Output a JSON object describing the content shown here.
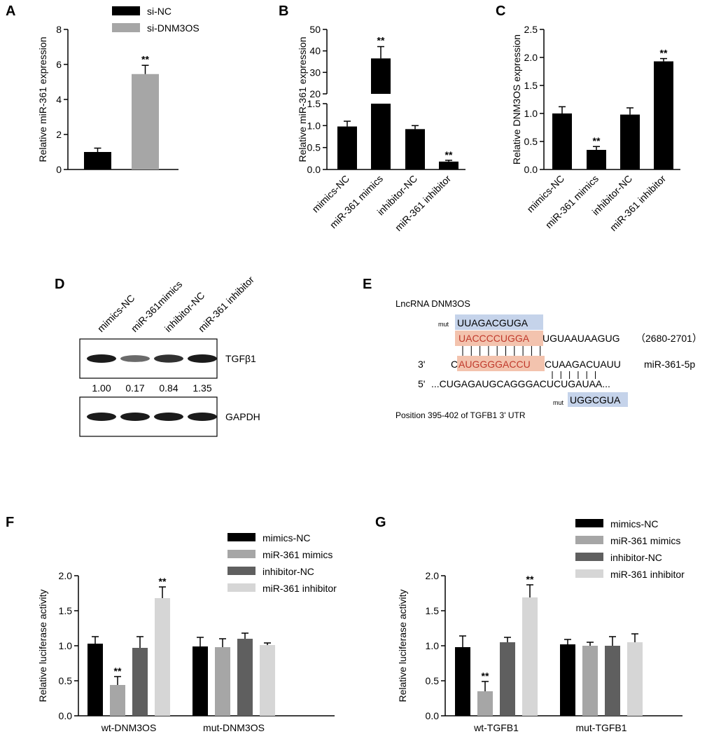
{
  "panel_labels": [
    "A",
    "B",
    "C",
    "D",
    "E",
    "F",
    "G"
  ],
  "chart_data": [
    {
      "id": "A",
      "type": "bar",
      "ylabel": "Relative miR-361 expression",
      "ylim": [
        0,
        8
      ],
      "yticks": [
        0,
        2,
        4,
        6,
        8
      ],
      "categories": [
        "si-NC",
        "si-DNM3OS"
      ],
      "values": [
        1.0,
        5.45
      ],
      "errors": [
        0.22,
        0.5
      ],
      "colors": [
        "#000000",
        "#a6a6a6"
      ],
      "significance": [
        "",
        "**"
      ],
      "legend": [
        "si-NC",
        "si-DNM3OS"
      ]
    },
    {
      "id": "B",
      "type": "bar",
      "ylabel": "Relative miR-361 expression",
      "axis_break": true,
      "lower_ylim": [
        0,
        1.5
      ],
      "lower_yticks": [
        "0.0",
        "0.5",
        "1.0",
        "1.5"
      ],
      "upper_ylim": [
        20,
        50
      ],
      "upper_yticks": [
        "20",
        "30",
        "40",
        "50"
      ],
      "categories": [
        "mimics-NC",
        "miR-361 mimics",
        "inhibitor-NC",
        "miR-361 inhibitor"
      ],
      "values": [
        0.98,
        36.5,
        0.92,
        0.18
      ],
      "errors": [
        0.12,
        5.5,
        0.08,
        0.03
      ],
      "colors": [
        "#000000",
        "#000000",
        "#000000",
        "#000000"
      ],
      "significance": [
        "",
        "**",
        "",
        "**"
      ]
    },
    {
      "id": "C",
      "type": "bar",
      "ylabel": "Relative DNM3OS expression",
      "ylim": [
        0,
        2.5
      ],
      "yticks": [
        "0.0",
        "0.5",
        "1.0",
        "1.5",
        "2.0",
        "2.5"
      ],
      "categories": [
        "mimics-NC",
        "miR-361 mimics",
        "inhibitor-NC",
        "miR-361 inhibitor"
      ],
      "values": [
        1.0,
        0.35,
        0.98,
        1.93
      ],
      "errors": [
        0.12,
        0.06,
        0.12,
        0.05
      ],
      "colors": [
        "#000000",
        "#000000",
        "#000000",
        "#000000"
      ],
      "significance": [
        "",
        "**",
        "",
        "**"
      ]
    },
    {
      "id": "F",
      "type": "bar",
      "ylabel": "Relative luciferase activity",
      "ylim": [
        0,
        2.0
      ],
      "yticks": [
        "0.0",
        "0.5",
        "1.0",
        "1.5",
        "2.0"
      ],
      "categories": [
        "wt-DNM3OS",
        "mut-DNM3OS"
      ],
      "series": [
        {
          "name": "mimics-NC",
          "color": "#000000",
          "values": [
            1.03,
            0.99
          ],
          "errors": [
            0.1,
            0.13
          ],
          "significance": [
            "",
            ""
          ]
        },
        {
          "name": "miR-361 mimics",
          "color": "#a6a6a6",
          "values": [
            0.44,
            0.98
          ],
          "errors": [
            0.12,
            0.12
          ],
          "significance": [
            "**",
            ""
          ]
        },
        {
          "name": "inhibitor-NC",
          "color": "#5f5f5f",
          "values": [
            0.97,
            1.1
          ],
          "errors": [
            0.16,
            0.08
          ],
          "significance": [
            "",
            ""
          ]
        },
        {
          "name": "miR-361 inhibitor",
          "color": "#d6d6d6",
          "values": [
            1.68,
            1.01
          ],
          "errors": [
            0.16,
            0.03
          ],
          "significance": [
            "**",
            ""
          ]
        }
      ]
    },
    {
      "id": "G",
      "type": "bar",
      "ylabel": "Relative luciferase activity",
      "ylim": [
        0,
        2.0
      ],
      "yticks": [
        "0.0",
        "0.5",
        "1.0",
        "1.5",
        "2.0"
      ],
      "categories": [
        "wt-TGFB1",
        "mut-TGFB1"
      ],
      "series": [
        {
          "name": "mimics-NC",
          "color": "#000000",
          "values": [
            0.98,
            1.02
          ],
          "errors": [
            0.16,
            0.07
          ],
          "significance": [
            "",
            ""
          ]
        },
        {
          "name": "miR-361 mimics",
          "color": "#a6a6a6",
          "values": [
            0.35,
            1.0
          ],
          "errors": [
            0.14,
            0.05
          ],
          "significance": [
            "**",
            ""
          ]
        },
        {
          "name": "inhibitor-NC",
          "color": "#5f5f5f",
          "values": [
            1.05,
            1.0
          ],
          "errors": [
            0.07,
            0.13
          ],
          "significance": [
            "",
            ""
          ]
        },
        {
          "name": "miR-361 inhibitor",
          "color": "#d6d6d6",
          "values": [
            1.69,
            1.05
          ],
          "errors": [
            0.18,
            0.12
          ],
          "significance": [
            "**",
            ""
          ]
        }
      ]
    }
  ],
  "western_blot": {
    "lanes": [
      "mimics-NC",
      "miR-361mimics",
      "inhibitor-NC",
      "miR-361 inhibitor"
    ],
    "bands": [
      {
        "name": "TGFβ1",
        "intensity": [
          1.0,
          0.45,
          0.85,
          1.0
        ]
      },
      {
        "name": "GAPDH",
        "intensity": [
          1.0,
          1.0,
          1.0,
          1.0
        ]
      }
    ],
    "quantification": [
      "1.00",
      "0.17",
      "0.84",
      "1.35"
    ]
  },
  "sequence": {
    "title": "LncRNA DNM3OS",
    "mut_label": "mut",
    "mut_top": "UUAGACGUGA",
    "dnm3os_highlight": "UACCCCUGGA",
    "dnm3os_rest": "UGUAAUAAGUG",
    "dnm3os_pos": "（2680-2701）",
    "mir_prime": "3'",
    "mir_first": "C",
    "mir_highlight": "AUGGGGACCU",
    "mir_rest": "CUAAGACUAUU",
    "mir_name": "miR-361-5p",
    "utr_prime": "5'",
    "utr_seq": "...CUGAGAUGCAGGGACUCUGAUAA...",
    "mut_bottom": "UGGCGUA",
    "caption": "Position 395-402 of TGFB1 3' UTR"
  }
}
